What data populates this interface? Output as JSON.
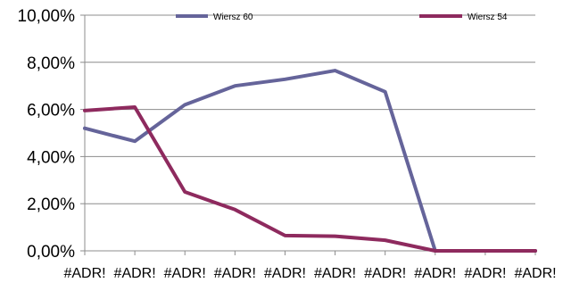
{
  "chart_data": {
    "type": "line",
    "title": "",
    "xlabel": "",
    "ylabel": "",
    "ylim": [
      0,
      10
    ],
    "y_ticks": [
      0,
      2,
      4,
      6,
      8,
      10
    ],
    "y_tick_labels": [
      "0,00%",
      "2,00%",
      "4,00%",
      "6,00%",
      "8,00%",
      "10,00%"
    ],
    "categories": [
      "#ADR!",
      "#ADR!",
      "#ADR!",
      "#ADR!",
      "#ADR!",
      "#ADR!",
      "#ADR!",
      "#ADR!",
      "#ADR!",
      "#ADR!"
    ],
    "grid": true,
    "legend_position": "top",
    "series": [
      {
        "name": "Wiersz 60",
        "color": "#65649a",
        "values": [
          5.2,
          4.65,
          6.2,
          7.0,
          7.28,
          7.65,
          6.75,
          0.0,
          0.0,
          0.0
        ]
      },
      {
        "name": "Wiersz 54",
        "color": "#8e2a5e",
        "values": [
          5.95,
          6.1,
          2.5,
          1.75,
          0.65,
          0.62,
          0.45,
          0.0,
          0.0,
          0.0
        ]
      }
    ]
  }
}
